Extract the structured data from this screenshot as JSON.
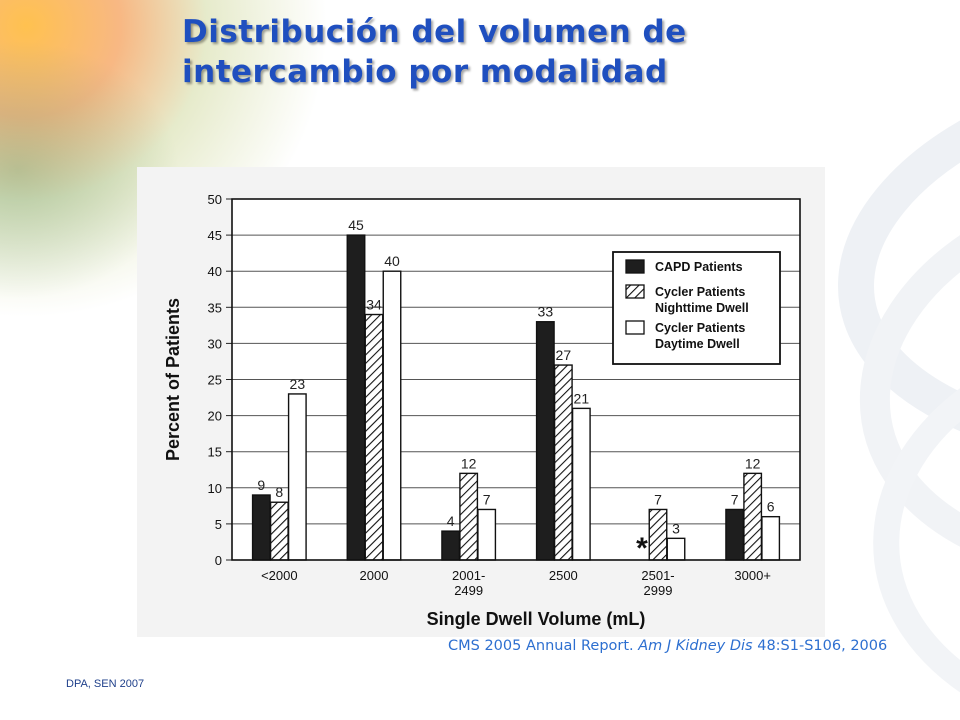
{
  "slide": {
    "title_line1": "Distribución del volumen de",
    "title_line2": "intercambio por modalidad",
    "citation_prefix": "CMS 2005 Annual Report. ",
    "citation_journal": "Am J Kidney Dis",
    "citation_suffix": " 48:S1-S106, 2006",
    "footer": "DPA, SEN 2007"
  },
  "chart_data": {
    "type": "bar",
    "title": "",
    "xlabel": "Single Dwell Volume (mL)",
    "ylabel": "Percent of Patients",
    "ylim": [
      0,
      50
    ],
    "yticks": [
      0,
      5,
      10,
      15,
      20,
      25,
      30,
      35,
      40,
      45,
      50
    ],
    "grid": true,
    "legend_position": "top-right",
    "categories": [
      "<2000",
      "2000",
      "2001-\n2499",
      "2500",
      "2501-\n2999",
      "3000+"
    ],
    "series": [
      {
        "name": "CAPD Patients",
        "fill": "solid",
        "color": "#1a1a1a",
        "values": [
          9,
          45,
          4,
          33,
          null,
          7
        ],
        "labels": [
          "9",
          "45",
          "4",
          "33",
          "*",
          "7"
        ]
      },
      {
        "name": "Cycler Patients\nNighttime Dwell",
        "fill": "hatched",
        "color": "#ffffff",
        "values": [
          8,
          34,
          12,
          27,
          7,
          12
        ],
        "labels": [
          "8",
          "34",
          "12",
          "27",
          "7",
          "12"
        ]
      },
      {
        "name": "Cycler Patients\nDaytime Dwell",
        "fill": "open",
        "color": "#ffffff",
        "values": [
          23,
          40,
          7,
          21,
          3,
          6
        ],
        "labels": [
          "23",
          "40",
          "7",
          "21",
          "3",
          "6"
        ]
      }
    ]
  }
}
